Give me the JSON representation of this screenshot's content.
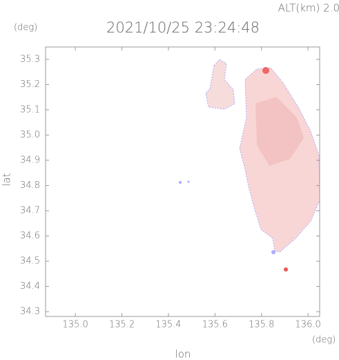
{
  "chart_data": {
    "type": "map",
    "title": "2021/10/25 23:24:48",
    "subtitle": "ALT(km) 2.0",
    "y_unit": "(deg)",
    "x_unit": "(deg)",
    "ylabel": "lat",
    "xlabel": "lon",
    "xlim": [
      134.872,
      136.05
    ],
    "ylim": [
      34.281,
      35.349
    ],
    "xticks": [
      {
        "value": 135,
        "label": "135.0"
      },
      135.2,
      135.4,
      135.6,
      135.8,
      {
        "value": 136,
        "label": "136.0"
      }
    ],
    "yticks": [
      34.3,
      34.4,
      34.5,
      34.6,
      34.7,
      34.8,
      34.9,
      {
        "value": 35,
        "label": "35.0"
      },
      35.1,
      35.2,
      35.3
    ]
  }
}
